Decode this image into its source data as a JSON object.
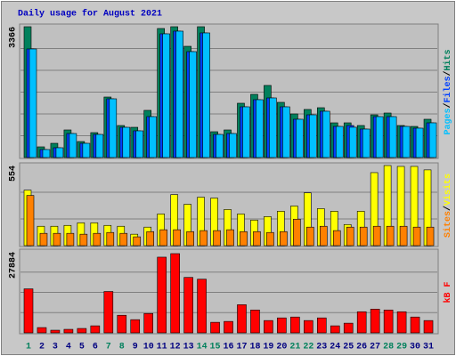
{
  "chart_data": [
    {
      "type": "bar",
      "title": "Daily usage for August 2021",
      "ylim": [
        0,
        3366
      ],
      "yticks": [
        3366
      ],
      "grid_divisions": 6,
      "legend_separator": "/",
      "series": [
        {
          "name": "Hits",
          "color": "#00805c",
          "values": [
            3366,
            275,
            366,
            710,
            412,
            641,
            1557,
            824,
            778,
            1214,
            3320,
            3366,
            2862,
            3366,
            664,
            710,
            1397,
            1626,
            1855,
            1420,
            1122,
            1237,
            1282,
            893,
            893,
            824,
            1099,
            1145,
            824,
            801,
            985
          ]
        },
        {
          "name": "Files",
          "color": "#0040ff",
          "values": [
            2794,
            206,
            252,
            618,
            366,
            595,
            1511,
            778,
            687,
            1053,
            3183,
            3252,
            2725,
            3206,
            595,
            618,
            1305,
            1488,
            1534,
            1305,
            985,
            1099,
            1191,
            801,
            824,
            733,
            1053,
            1053,
            801,
            756,
            893
          ]
        },
        {
          "name": "Pages",
          "color": "#00c0ff",
          "values": [
            2794,
            206,
            252,
            618,
            366,
            595,
            1511,
            778,
            687,
            1053,
            3183,
            3252,
            2725,
            3206,
            595,
            618,
            1305,
            1488,
            1534,
            1305,
            985,
            1099,
            1191,
            801,
            780,
            733,
            1053,
            1053,
            801,
            756,
            893
          ]
        }
      ]
    },
    {
      "type": "bar",
      "ylim": [
        0,
        554
      ],
      "yticks": [
        554
      ],
      "grid_divisions": 3,
      "legend_separator": "/",
      "series": [
        {
          "name": "Visits",
          "color": "#ffff00",
          "values": [
            384,
            134,
            134,
            140,
            158,
            158,
            140,
            134,
            79,
            128,
            219,
            353,
            286,
            335,
            329,
            250,
            219,
            177,
            201,
            238,
            274,
            365,
            256,
            238,
            146,
            238,
            505,
            554,
            548,
            548,
            524
          ]
        },
        {
          "name": "Sites",
          "color": "#ff8000",
          "values": [
            347,
            85,
            85,
            85,
            79,
            85,
            91,
            85,
            61,
            97,
            110,
            110,
            97,
            104,
            104,
            110,
            97,
            97,
            91,
            97,
            183,
            128,
            134,
            104,
            128,
            128,
            134,
            134,
            134,
            128,
            128
          ]
        }
      ]
    },
    {
      "type": "bar",
      "ylim": [
        0,
        27884
      ],
      "yticks": [
        27884
      ],
      "grid_divisions": 4,
      "categories": [
        "1",
        "2",
        "3",
        "4",
        "5",
        "6",
        "7",
        "8",
        "9",
        "10",
        "11",
        "12",
        "13",
        "14",
        "15",
        "16",
        "17",
        "18",
        "19",
        "20",
        "21",
        "22",
        "23",
        "24",
        "25",
        "26",
        "27",
        "28",
        "29",
        "30",
        "31"
      ],
      "weekends": [
        0,
        6,
        7,
        13,
        14,
        20,
        21,
        27,
        28
      ],
      "weekend_color": "#00805c",
      "category_color": "#000080",
      "series": [
        {
          "name": "kB F",
          "color": "#ff0000",
          "values": [
            15150,
            1818,
            909,
            1212,
            1515,
            2424,
            14241,
            6060,
            4545,
            6666,
            26058,
            27278,
            19089,
            18483,
            3636,
            3939,
            9696,
            7878,
            4242,
            5151,
            5454,
            4242,
            5151,
            2424,
            3333,
            7272,
            8181,
            7878,
            7272,
            5454,
            4242
          ]
        }
      ]
    }
  ]
}
